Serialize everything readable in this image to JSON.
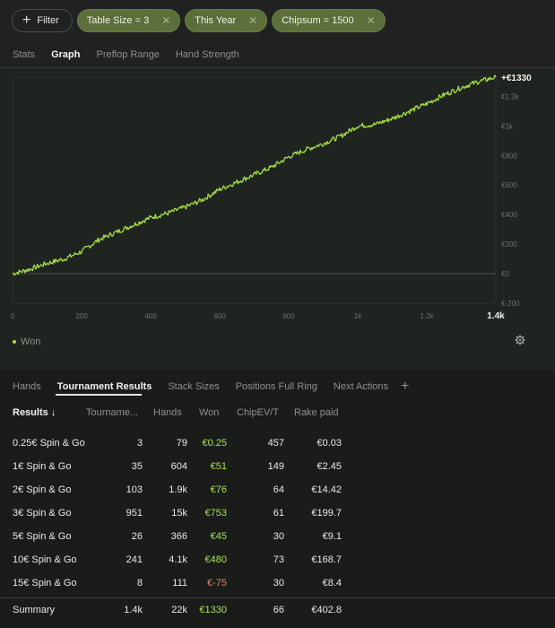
{
  "filters": {
    "filter_label": "Filter",
    "active": [
      {
        "label": "Table Size = 3"
      },
      {
        "label": "This Year"
      },
      {
        "label": "Chipsum = 1500"
      }
    ]
  },
  "chart_tabs": [
    "Stats",
    "Graph",
    "Preflop Range",
    "Hand Strength"
  ],
  "chart_tab_active": "Graph",
  "chart_data": {
    "type": "line",
    "title": "",
    "series": [
      {
        "name": "Won",
        "color": "#a3e046"
      }
    ],
    "x_ticks": [
      "0",
      "200",
      "400",
      "600",
      "800",
      "1k",
      "1.2k",
      "1.4k"
    ],
    "y_ticks": [
      "€-200",
      "€0",
      "€200",
      "€400",
      "€600",
      "€800",
      "€1k",
      "€1.2k"
    ],
    "xlim": [
      0,
      1400
    ],
    "ylim": [
      -200,
      1330
    ],
    "final_label": "+€1330",
    "points": [
      [
        0,
        0
      ],
      [
        50,
        30
      ],
      [
        100,
        70
      ],
      [
        150,
        100
      ],
      [
        200,
        150
      ],
      [
        250,
        230
      ],
      [
        300,
        280
      ],
      [
        350,
        330
      ],
      [
        400,
        380
      ],
      [
        450,
        410
      ],
      [
        500,
        450
      ],
      [
        550,
        500
      ],
      [
        600,
        570
      ],
      [
        650,
        620
      ],
      [
        700,
        670
      ],
      [
        750,
        720
      ],
      [
        800,
        790
      ],
      [
        850,
        840
      ],
      [
        900,
        880
      ],
      [
        950,
        930
      ],
      [
        1000,
        1000
      ],
      [
        1050,
        1010
      ],
      [
        1100,
        1050
      ],
      [
        1150,
        1100
      ],
      [
        1200,
        1150
      ],
      [
        1250,
        1210
      ],
      [
        1300,
        1260
      ],
      [
        1350,
        1300
      ],
      [
        1400,
        1330
      ]
    ]
  },
  "legend": {
    "won": "Won"
  },
  "results_tabs": [
    "Hands",
    "Tournament Results",
    "Stack Sizes",
    "Positions Full Ring",
    "Next Actions"
  ],
  "results_tab_active": "Tournament Results",
  "table": {
    "headers": {
      "results": "Results ↓",
      "tournament": "Tourname...",
      "hands": "Hands",
      "won": "Won",
      "chipev": "ChipEV/T",
      "rake": "Rake paid"
    },
    "rows": [
      {
        "name": "0.25€ Spin & Go",
        "tournaments": "3",
        "hands": "79",
        "won": "€0.25",
        "chipev": "457",
        "rake": "€0.03"
      },
      {
        "name": "1€ Spin & Go",
        "tournaments": "35",
        "hands": "604",
        "won": "€51",
        "chipev": "149",
        "rake": "€2.45"
      },
      {
        "name": "2€ Spin & Go",
        "tournaments": "103",
        "hands": "1.9k",
        "won": "€76",
        "chipev": "64",
        "rake": "€14.42"
      },
      {
        "name": "3€ Spin & Go",
        "tournaments": "951",
        "hands": "15k",
        "won": "€753",
        "chipev": "61",
        "rake": "€199.7"
      },
      {
        "name": "5€ Spin & Go",
        "tournaments": "26",
        "hands": "366",
        "won": "€45",
        "chipev": "30",
        "rake": "€9.1"
      },
      {
        "name": "10€ Spin & Go",
        "tournaments": "241",
        "hands": "4.1k",
        "won": "€480",
        "chipev": "73",
        "rake": "€168.7"
      },
      {
        "name": "15€ Spin & Go",
        "tournaments": "8",
        "hands": "111",
        "won": "€-75",
        "chipev": "30",
        "rake": "€8.4"
      }
    ],
    "summary": {
      "name": "Summary",
      "tournaments": "1.4k",
      "hands": "22k",
      "won": "€1330",
      "chipev": "66",
      "rake": "€402.8"
    }
  }
}
